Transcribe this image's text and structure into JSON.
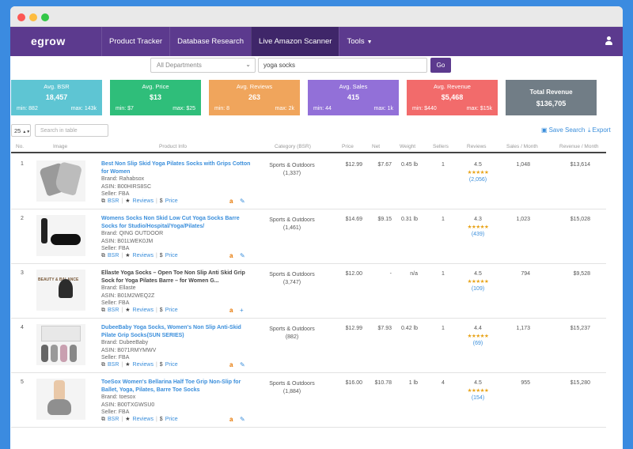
{
  "nav": {
    "logo": "egrow",
    "items": [
      {
        "label": "Product Tracker"
      },
      {
        "label": "Database Research"
      },
      {
        "label": "Live Amazon Scanner"
      },
      {
        "label": "Tools"
      }
    ],
    "active_index": 2,
    "user_icon": "user-icon"
  },
  "search": {
    "department": "All Departments",
    "query": "yoga socks",
    "go_label": "Go"
  },
  "stats": [
    {
      "label": "Avg. BSR",
      "value": "18,457",
      "min": "min: 882",
      "max": "max: 143k",
      "color": "#5ec5d3"
    },
    {
      "label": "Avg. Price",
      "value": "$13",
      "min": "min: $7",
      "max": "max: $25",
      "color": "#2fbe7a"
    },
    {
      "label": "Avg. Reviews",
      "value": "263",
      "min": "min: 8",
      "max": "max: 2k",
      "color": "#f0a55c"
    },
    {
      "label": "Avg. Sales",
      "value": "415",
      "min": "min: 44",
      "max": "max: 1k",
      "color": "#9270d8"
    },
    {
      "label": "Avg. Revenue",
      "value": "$5,468",
      "min": "min: $440",
      "max": "max: $15k",
      "color": "#f26b6b"
    },
    {
      "label": "Total Revenue",
      "value": "$136,705",
      "color": "#717d86"
    }
  ],
  "table_tools": {
    "page_size": "25",
    "search_placeholder": "Search in table",
    "save_search": "Save Search",
    "export": "Export"
  },
  "columns": [
    "No.",
    "Image",
    "Product Info",
    "Category (BSR)",
    "Price",
    "Net",
    "Weight",
    "Sellers",
    "Reviews",
    "Sales / Month",
    "Revenue / Month"
  ],
  "rows": [
    {
      "no": "1",
      "title": "Best Non Slip Skid Yoga Pilates Socks with Grips Cotton for Women",
      "brand": "Brand: Rahabsox",
      "asin": "ASIN: B00HIRS8SC",
      "seller": "Seller: FBA",
      "category": "Sports & Outdoors",
      "bsr": "(1,337)",
      "price": "$12.99",
      "net": "$7.67",
      "weight": "0.45 lb",
      "sellers": "1",
      "rating": "4.5",
      "stars": "★★★★★",
      "reviews": "(2,056)",
      "sales": "1,048",
      "revenue": "$13,614",
      "action": "edit-icon"
    },
    {
      "no": "2",
      "title": "Womens Socks Non Skid Low Cut Yoga Socks Barre Socks for Studio/Hospital/Yoga/Pilates/",
      "brand": "Brand: QING OUTDOOR",
      "asin": "ASIN: B01LWEK0JM",
      "seller": "Seller: FBA",
      "category": "Sports & Outdoors",
      "bsr": "(1,461)",
      "price": "$14.69",
      "net": "$9.15",
      "weight": "0.31 lb",
      "sellers": "1",
      "rating": "4.3",
      "stars": "★★★★★",
      "reviews": "(439)",
      "sales": "1,023",
      "revenue": "$15,028",
      "action": "edit-icon"
    },
    {
      "no": "3",
      "title": "Ellaste Yoga Socks – Open Toe Non Slip Anti Skid Grip Sock for Yoga Pilates Barre – for Women G...",
      "brand": "Brand: Ellaste",
      "asin": "ASIN: B01M2WEQ2Z",
      "seller": "Seller: FBA",
      "category": "Sports & Outdoors",
      "bsr": "(3,747)",
      "price": "$12.00",
      "net": "-",
      "weight": "n/a",
      "sellers": "1",
      "rating": "4.5",
      "stars": "★★★★★",
      "reviews": "(109)",
      "sales": "794",
      "revenue": "$9,528",
      "action": "plus-icon",
      "image_text": "BEAUTY & BALANCE"
    },
    {
      "no": "4",
      "title": "DubeeBaby Yoga Socks, Women's Non Slip Anti-Skid Pilate Grip Socks(SUN SERIES)",
      "brand": "Brand: DubeeBaby",
      "asin": "ASIN: B071RMYMWV",
      "seller": "Seller: FBA",
      "category": "Sports & Outdoors",
      "bsr": "(882)",
      "price": "$12.99",
      "net": "$7.93",
      "weight": "0.42 lb",
      "sellers": "1",
      "rating": "4.4",
      "stars": "★★★★★",
      "reviews": "(69)",
      "sales": "1,173",
      "revenue": "$15,237",
      "action": "edit-icon"
    },
    {
      "no": "5",
      "title": "ToeSox Women's Bellarina Half Toe Grip Non-Slip for Ballet, Yoga, Pilates, Barre Toe Socks",
      "brand": "Brand: toesox",
      "asin": "ASIN: B00TXGWSU0",
      "seller": "Seller: FBA",
      "category": "Sports & Outdoors",
      "bsr": "(1,884)",
      "price": "$16.00",
      "net": "$10.78",
      "weight": "1 lb",
      "sellers": "4",
      "rating": "4.5",
      "stars": "★★★★★",
      "reviews": "(154)",
      "sales": "955",
      "revenue": "$15,280",
      "action": "edit-icon"
    }
  ],
  "row_actions": {
    "bsr": "BSR",
    "reviews": "Reviews",
    "price": "Price",
    "amazon": "a"
  }
}
